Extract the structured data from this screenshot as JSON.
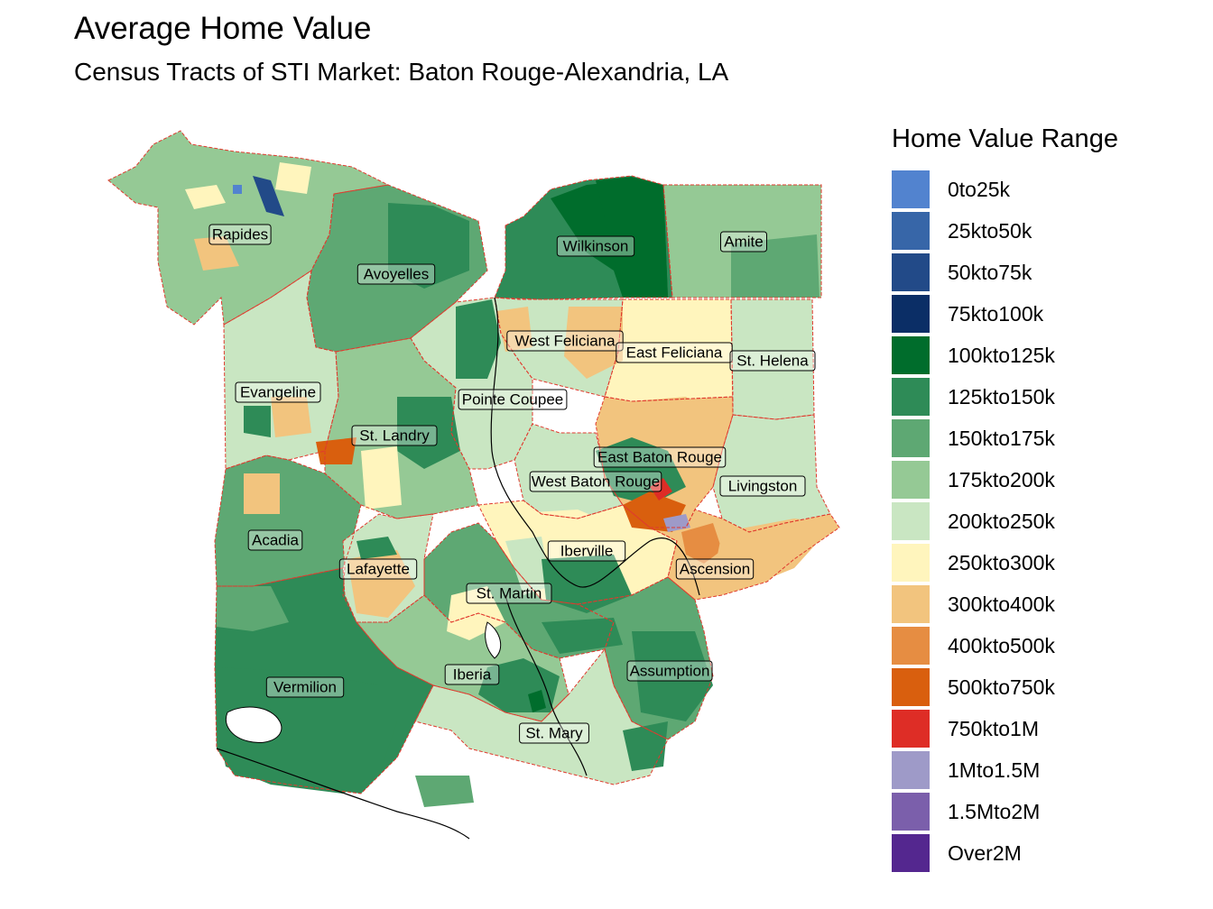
{
  "title": "Average Home Value",
  "subtitle": "Census Tracts of STI Market: Baton Rouge-Alexandria, LA",
  "legend": {
    "title": "Home Value Range",
    "items": [
      {
        "label": "0to25k",
        "color": "#5283cf"
      },
      {
        "label": "25kto50k",
        "color": "#3766a8"
      },
      {
        "label": "50kto75k",
        "color": "#224a88"
      },
      {
        "label": "75kto100k",
        "color": "#0b2e66"
      },
      {
        "label": "100kto125k",
        "color": "#006d2c"
      },
      {
        "label": "125kto150k",
        "color": "#2e8b57"
      },
      {
        "label": "150kto175k",
        "color": "#5ea873"
      },
      {
        "label": "175kto200k",
        "color": "#95c995"
      },
      {
        "label": "200kto250k",
        "color": "#c9e6c2"
      },
      {
        "label": "250kto300k",
        "color": "#fff5bd"
      },
      {
        "label": "300kto400k",
        "color": "#f2c47e"
      },
      {
        "label": "400kto500k",
        "color": "#e68d42"
      },
      {
        "label": "500kto750k",
        "color": "#d95f0e"
      },
      {
        "label": "750kto1M",
        "color": "#de2d26"
      },
      {
        "label": "1Mto1.5M",
        "color": "#9e9ac8"
      },
      {
        "label": "1.5Mto2M",
        "color": "#7b5fab"
      },
      {
        "label": "Over2M",
        "color": "#54278f"
      }
    ]
  },
  "parishes": [
    {
      "name": "Rapides",
      "range": "175kto200k"
    },
    {
      "name": "Avoyelles",
      "range": "150kto175k"
    },
    {
      "name": "Wilkinson",
      "range": "125kto150k"
    },
    {
      "name": "Amite",
      "range": "175kto200k"
    },
    {
      "name": "West Feliciana",
      "range": "200kto250k"
    },
    {
      "name": "East Feliciana",
      "range": "250kto300k"
    },
    {
      "name": "St. Helena",
      "range": "200kto250k"
    },
    {
      "name": "Evangeline",
      "range": "200kto250k"
    },
    {
      "name": "Pointe Coupee",
      "range": "200kto250k"
    },
    {
      "name": "St. Landry",
      "range": "175kto200k"
    },
    {
      "name": "East Baton Rouge",
      "range": "300kto400k"
    },
    {
      "name": "West Baton Rouge",
      "range": "200kto250k"
    },
    {
      "name": "Livingston",
      "range": "200kto250k"
    },
    {
      "name": "Acadia",
      "range": "150kto175k"
    },
    {
      "name": "Iberville",
      "range": "250kto300k"
    },
    {
      "name": "Lafayette",
      "range": "200kto250k"
    },
    {
      "name": "Ascension",
      "range": "300kto400k"
    },
    {
      "name": "St. Martin",
      "range": "150kto175k"
    },
    {
      "name": "Assumption",
      "range": "150kto175k"
    },
    {
      "name": "Iberia",
      "range": "175kto200k"
    },
    {
      "name": "Vermilion",
      "range": "125kto150k"
    },
    {
      "name": "St. Mary",
      "range": "200kto250k"
    }
  ]
}
